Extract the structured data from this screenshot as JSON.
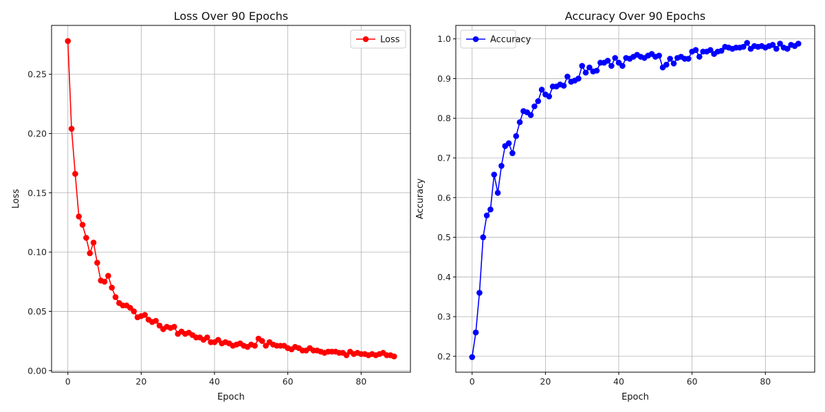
{
  "chart_data": [
    {
      "type": "line",
      "title": "Loss Over 90 Epochs",
      "xlabel": "Epoch",
      "ylabel": "Loss",
      "xlim": [
        -4.45,
        93.45
      ],
      "ylim": [
        -0.0013,
        0.2912
      ],
      "xticks": [
        0,
        20,
        40,
        60,
        80
      ],
      "yticks": [
        0.0,
        0.05,
        0.1,
        0.15,
        0.2,
        0.25
      ],
      "ytick_labels": [
        "0.00",
        "0.05",
        "0.10",
        "0.15",
        "0.20",
        "0.25"
      ],
      "grid": true,
      "legend_position": "top-right",
      "color": "#ff0000",
      "series": [
        {
          "name": "Loss",
          "x": [
            0,
            1,
            2,
            3,
            4,
            5,
            6,
            7,
            8,
            9,
            10,
            11,
            12,
            13,
            14,
            15,
            16,
            17,
            18,
            19,
            20,
            21,
            22,
            23,
            24,
            25,
            26,
            27,
            28,
            29,
            30,
            31,
            32,
            33,
            34,
            35,
            36,
            37,
            38,
            39,
            40,
            41,
            42,
            43,
            44,
            45,
            46,
            47,
            48,
            49,
            50,
            51,
            52,
            53,
            54,
            55,
            56,
            57,
            58,
            59,
            60,
            61,
            62,
            63,
            64,
            65,
            66,
            67,
            68,
            69,
            70,
            71,
            72,
            73,
            74,
            75,
            76,
            77,
            78,
            79,
            80,
            81,
            82,
            83,
            84,
            85,
            86,
            87,
            88,
            89
          ],
          "values": [
            0.278,
            0.204,
            0.166,
            0.13,
            0.123,
            0.112,
            0.099,
            0.108,
            0.091,
            0.076,
            0.075,
            0.08,
            0.07,
            0.062,
            0.057,
            0.055,
            0.055,
            0.053,
            0.05,
            0.045,
            0.046,
            0.047,
            0.043,
            0.041,
            0.042,
            0.038,
            0.035,
            0.037,
            0.036,
            0.037,
            0.031,
            0.033,
            0.031,
            0.032,
            0.03,
            0.028,
            0.028,
            0.026,
            0.028,
            0.024,
            0.024,
            0.026,
            0.023,
            0.024,
            0.023,
            0.021,
            0.022,
            0.023,
            0.021,
            0.02,
            0.022,
            0.021,
            0.027,
            0.025,
            0.021,
            0.024,
            0.022,
            0.021,
            0.021,
            0.021,
            0.019,
            0.018,
            0.02,
            0.019,
            0.017,
            0.017,
            0.019,
            0.017,
            0.017,
            0.016,
            0.015,
            0.016,
            0.016,
            0.016,
            0.015,
            0.015,
            0.013,
            0.016,
            0.014,
            0.015,
            0.014,
            0.014,
            0.013,
            0.014,
            0.013,
            0.014,
            0.015,
            0.013,
            0.013,
            0.012
          ]
        }
      ]
    },
    {
      "type": "line",
      "title": "Accuracy Over 90 Epochs",
      "xlabel": "Epoch",
      "ylabel": "Accuracy",
      "xlim": [
        -4.45,
        93.45
      ],
      "ylim": [
        0.16,
        1.034
      ],
      "xticks": [
        0,
        20,
        40,
        60,
        80
      ],
      "yticks": [
        0.2,
        0.3,
        0.4,
        0.5,
        0.6,
        0.7,
        0.8,
        0.9,
        1.0
      ],
      "ytick_labels": [
        "0.2",
        "0.3",
        "0.4",
        "0.5",
        "0.6",
        "0.7",
        "0.8",
        "0.9",
        "1.0"
      ],
      "grid": true,
      "legend_position": "top-left",
      "color": "#0000ff",
      "series": [
        {
          "name": "Accuracy",
          "x": [
            0,
            1,
            2,
            3,
            4,
            5,
            6,
            7,
            8,
            9,
            10,
            11,
            12,
            13,
            14,
            15,
            16,
            17,
            18,
            19,
            20,
            21,
            22,
            23,
            24,
            25,
            26,
            27,
            28,
            29,
            30,
            31,
            32,
            33,
            34,
            35,
            36,
            37,
            38,
            39,
            40,
            41,
            42,
            43,
            44,
            45,
            46,
            47,
            48,
            49,
            50,
            51,
            52,
            53,
            54,
            55,
            56,
            57,
            58,
            59,
            60,
            61,
            62,
            63,
            64,
            65,
            66,
            67,
            68,
            69,
            70,
            71,
            72,
            73,
            74,
            75,
            76,
            77,
            78,
            79,
            80,
            81,
            82,
            83,
            84,
            85,
            86,
            87,
            88,
            89
          ],
          "values": [
            0.198,
            0.26,
            0.36,
            0.5,
            0.555,
            0.57,
            0.658,
            0.612,
            0.68,
            0.73,
            0.737,
            0.712,
            0.755,
            0.79,
            0.818,
            0.815,
            0.808,
            0.83,
            0.843,
            0.872,
            0.86,
            0.855,
            0.88,
            0.88,
            0.885,
            0.882,
            0.905,
            0.892,
            0.895,
            0.9,
            0.932,
            0.915,
            0.928,
            0.918,
            0.92,
            0.94,
            0.94,
            0.945,
            0.932,
            0.952,
            0.94,
            0.932,
            0.952,
            0.95,
            0.955,
            0.96,
            0.955,
            0.952,
            0.958,
            0.962,
            0.955,
            0.958,
            0.928,
            0.935,
            0.95,
            0.938,
            0.952,
            0.955,
            0.95,
            0.95,
            0.968,
            0.972,
            0.955,
            0.968,
            0.968,
            0.972,
            0.962,
            0.968,
            0.97,
            0.98,
            0.978,
            0.975,
            0.978,
            0.978,
            0.98,
            0.99,
            0.975,
            0.982,
            0.98,
            0.982,
            0.978,
            0.982,
            0.985,
            0.975,
            0.988,
            0.978,
            0.975,
            0.985,
            0.982,
            0.988
          ]
        }
      ]
    }
  ]
}
